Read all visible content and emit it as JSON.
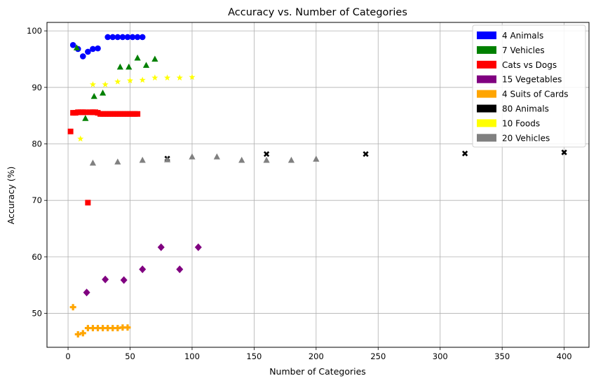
{
  "chart_data": {
    "type": "scatter",
    "title": "Accuracy vs. Number of Categories",
    "xlabel": "Number of Categories",
    "ylabel": "Accuracy (%)",
    "xlim": [
      -17,
      420
    ],
    "ylim": [
      44,
      101.5
    ],
    "xticks": [
      0,
      50,
      100,
      150,
      200,
      250,
      300,
      350,
      400
    ],
    "yticks": [
      50,
      60,
      70,
      80,
      90,
      100
    ],
    "grid": true,
    "legend_position": "top-right",
    "series": [
      {
        "name": "4 Animals",
        "color": "#0000ff",
        "marker": "circle",
        "points": [
          [
            4,
            97.5
          ],
          [
            8,
            96.8
          ],
          [
            12,
            95.5
          ],
          [
            16,
            96.3
          ],
          [
            20,
            96.8
          ],
          [
            24,
            96.9
          ],
          [
            32,
            98.9
          ],
          [
            36,
            98.9
          ],
          [
            40,
            98.9
          ],
          [
            44,
            98.9
          ],
          [
            48,
            98.9
          ],
          [
            52,
            98.9
          ],
          [
            56,
            98.9
          ],
          [
            60,
            98.9
          ]
        ]
      },
      {
        "name": "7 Vehicles",
        "color": "#008000",
        "marker": "triangle",
        "points": [
          [
            7,
            97.0
          ],
          [
            14,
            84.5
          ],
          [
            21,
            88.4
          ],
          [
            28,
            89.0
          ],
          [
            42,
            93.6
          ],
          [
            49,
            93.6
          ],
          [
            56,
            95.2
          ],
          [
            63,
            93.9
          ],
          [
            70,
            95.0
          ]
        ]
      },
      {
        "name": "Cats vs Dogs",
        "color": "#ff0000",
        "marker": "square",
        "points": [
          [
            2,
            82.2
          ],
          [
            4,
            85.5
          ],
          [
            6,
            85.5
          ],
          [
            8,
            85.6
          ],
          [
            10,
            85.6
          ],
          [
            12,
            85.6
          ],
          [
            14,
            85.6
          ],
          [
            16,
            69.6
          ],
          [
            18,
            85.6
          ],
          [
            20,
            85.6
          ],
          [
            22,
            85.6
          ],
          [
            24,
            85.5
          ],
          [
            26,
            85.3
          ],
          [
            28,
            85.3
          ],
          [
            30,
            85.3
          ],
          [
            32,
            85.3
          ],
          [
            34,
            85.3
          ],
          [
            36,
            85.3
          ],
          [
            38,
            85.3
          ],
          [
            40,
            85.3
          ],
          [
            42,
            85.3
          ],
          [
            44,
            85.3
          ],
          [
            46,
            85.3
          ],
          [
            48,
            85.3
          ],
          [
            50,
            85.3
          ],
          [
            52,
            85.3
          ],
          [
            54,
            85.3
          ],
          [
            56,
            85.3
          ]
        ]
      },
      {
        "name": "15 Vegetables",
        "color": "#800080",
        "marker": "diamond",
        "points": [
          [
            15,
            53.7
          ],
          [
            30,
            56.0
          ],
          [
            45,
            55.9
          ],
          [
            60,
            57.8
          ],
          [
            75,
            61.7
          ],
          [
            90,
            57.8
          ],
          [
            105,
            61.7
          ]
        ]
      },
      {
        "name": "4 Suits of Cards",
        "color": "#ffa500",
        "marker": "plus",
        "points": [
          [
            4,
            51.1
          ],
          [
            8,
            46.3
          ],
          [
            12,
            46.5
          ],
          [
            16,
            47.4
          ],
          [
            20,
            47.4
          ],
          [
            24,
            47.4
          ],
          [
            28,
            47.4
          ],
          [
            32,
            47.4
          ],
          [
            36,
            47.4
          ],
          [
            40,
            47.4
          ],
          [
            44,
            47.5
          ],
          [
            48,
            47.5
          ]
        ]
      },
      {
        "name": "80 Animals",
        "color": "#000000",
        "marker": "x",
        "points": [
          [
            80,
            77.4
          ],
          [
            160,
            78.2
          ],
          [
            240,
            78.2
          ],
          [
            320,
            78.3
          ],
          [
            400,
            78.5
          ]
        ]
      },
      {
        "name": "10 Foods",
        "color": "#ffff00",
        "marker": "star",
        "points": [
          [
            10,
            80.9
          ],
          [
            20,
            90.5
          ],
          [
            30,
            90.5
          ],
          [
            40,
            91.0
          ],
          [
            50,
            91.2
          ],
          [
            60,
            91.3
          ],
          [
            70,
            91.7
          ],
          [
            80,
            91.7
          ],
          [
            90,
            91.7
          ],
          [
            100,
            91.8
          ]
        ]
      },
      {
        "name": "20 Vehicles",
        "color": "#808080",
        "marker": "triangle",
        "points": [
          [
            20,
            76.6
          ],
          [
            40,
            76.8
          ],
          [
            60,
            77.1
          ],
          [
            80,
            77.2
          ],
          [
            100,
            77.7
          ],
          [
            120,
            77.7
          ],
          [
            140,
            77.1
          ],
          [
            160,
            77.1
          ],
          [
            180,
            77.1
          ],
          [
            200,
            77.3
          ]
        ]
      }
    ]
  }
}
